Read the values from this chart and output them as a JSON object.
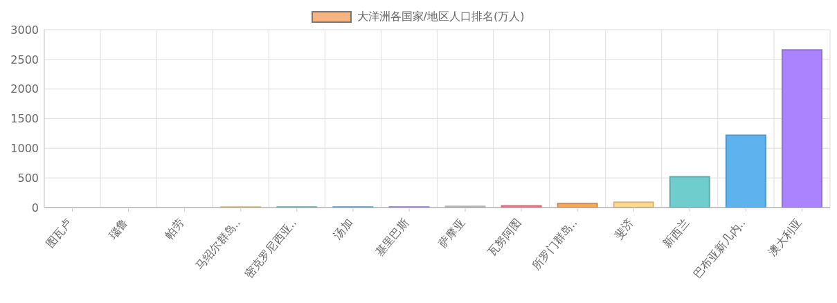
{
  "chart_data": {
    "type": "bar",
    "categories": [
      "图瓦卢",
      "瑙鲁",
      "帕劳",
      "马绍尔群岛..",
      "密克罗尼西亚..",
      "汤加",
      "基里巴斯",
      "萨摩亚",
      "瓦努阿图",
      "所罗门群岛..",
      "斐济",
      "新西兰",
      "巴布亚新几内..",
      "澳大利亚"
    ],
    "series": [
      {
        "name": "大洋洲各国家/地区人口排名(万人)",
        "color": "#f5b482",
        "colors": [
          "#d4d5d8",
          "#ff7d96",
          "#f9a85a",
          "#ffd88f",
          "#6fcdcd",
          "#5eb3ee",
          "#ab82ff",
          "#d4d5d8",
          "#ff7d96",
          "#f9a85a",
          "#ffd88f",
          "#6fcdcd",
          "#5eb3ee",
          "#ab82ff"
        ],
        "values": [
          0,
          0,
          0,
          10,
          10,
          10,
          10,
          20,
          30,
          70,
          90,
          520,
          1220,
          2660
        ]
      }
    ],
    "ylim": [
      0,
      3000
    ],
    "yticks": [
      0,
      500,
      1000,
      1500,
      2000,
      2500,
      3000
    ],
    "grid": true,
    "legend": "top"
  }
}
